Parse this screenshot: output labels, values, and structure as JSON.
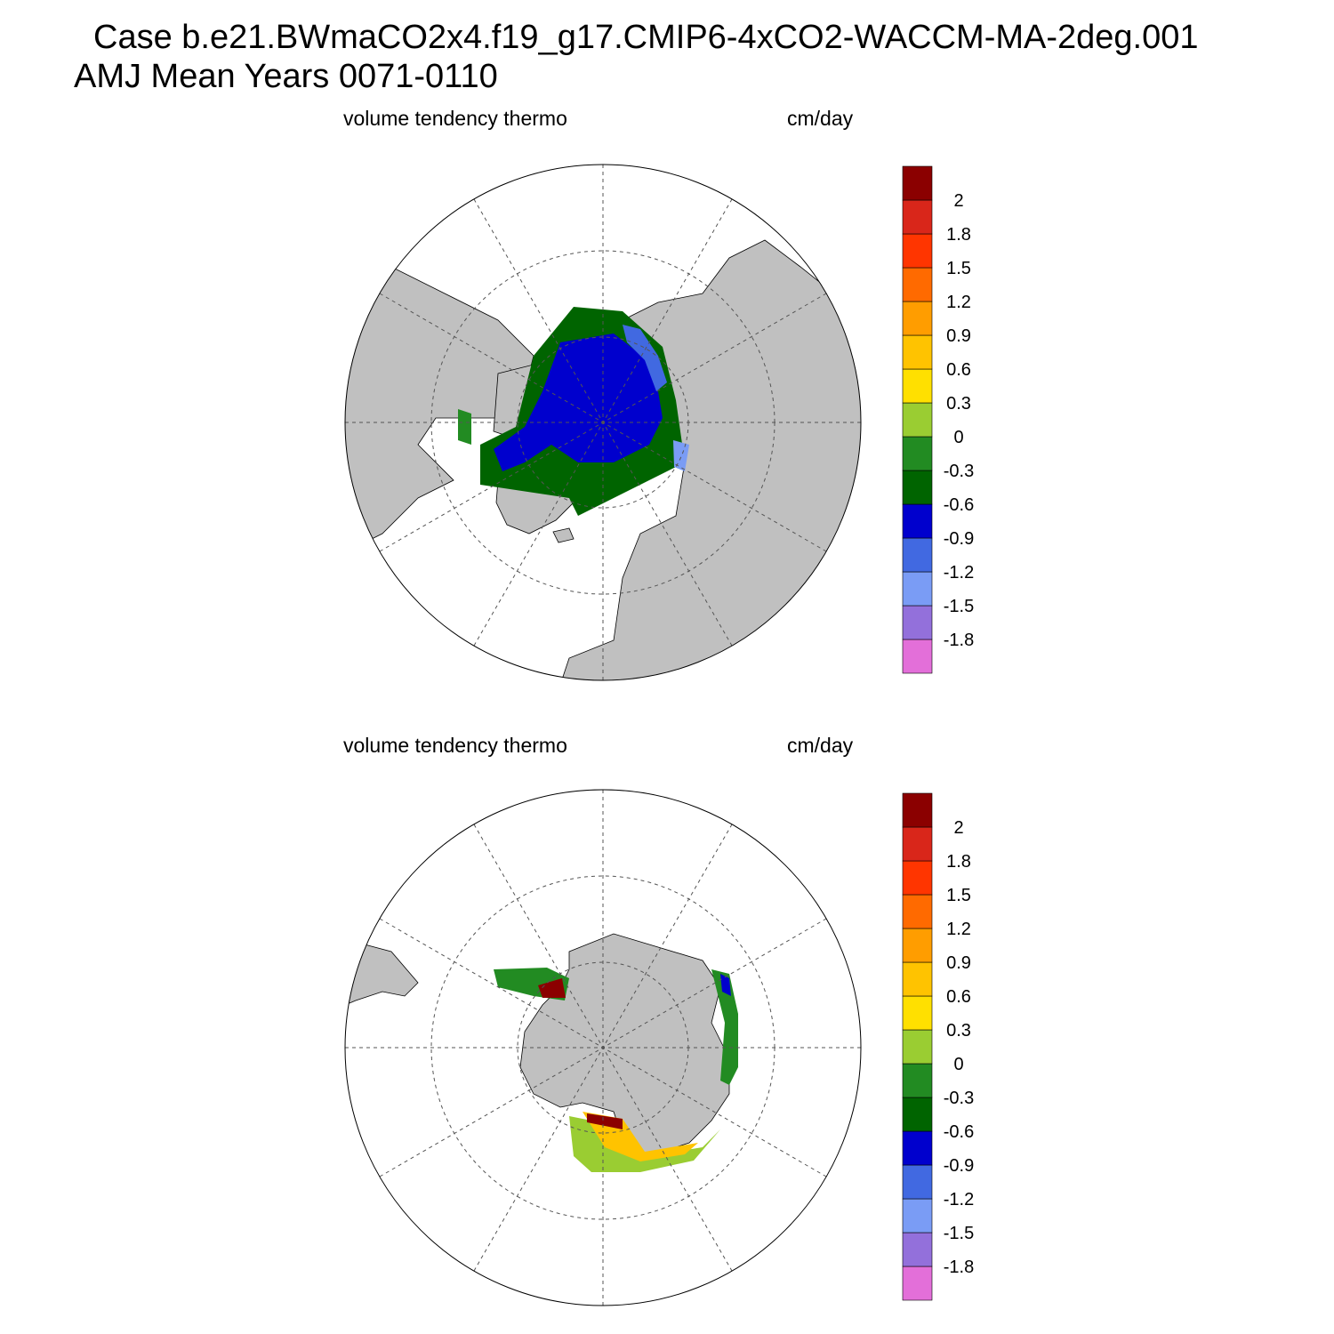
{
  "figure": {
    "title_line1": "Case b.e21.BWmaCO2x4.f19_g17.CMIP6-4xCO2-WACCM-MA-2deg.001",
    "title_line2": "AMJ Mean   Years 0071-0110"
  },
  "colors": {
    "land": "#c0c0c0",
    "ocean": "#ffffff",
    "grid_line": "#555555",
    "palette": [
      "#e36fd9",
      "#9370db",
      "#7a9cf5",
      "#4169e1",
      "#0000cd",
      "#006400",
      "#228b22",
      "#9acd32",
      "#ffe000",
      "#ffc300",
      "#ff9d00",
      "#ff6a00",
      "#ff3500",
      "#d9261a",
      "#8b0000"
    ]
  },
  "panels": [
    {
      "id": "north",
      "variable_label": "volume tendency thermo",
      "units_label": "cm/day",
      "hemisphere": "NH",
      "colorbar": {
        "tick_labels": [
          "-1.8",
          "-1.5",
          "-1.2",
          "-0.9",
          "-0.6",
          "-0.3",
          "0",
          "0.3",
          "0.6",
          "0.9",
          "1.2",
          "1.5",
          "1.8",
          "2"
        ]
      }
    },
    {
      "id": "south",
      "variable_label": "volume tendency thermo",
      "units_label": "cm/day",
      "hemisphere": "SH",
      "colorbar": {
        "tick_labels": [
          "-1.8",
          "-1.5",
          "-1.2",
          "-0.9",
          "-0.6",
          "-0.3",
          "0",
          "0.3",
          "0.6",
          "0.9",
          "1.2",
          "1.5",
          "1.8",
          "2"
        ]
      }
    }
  ]
}
